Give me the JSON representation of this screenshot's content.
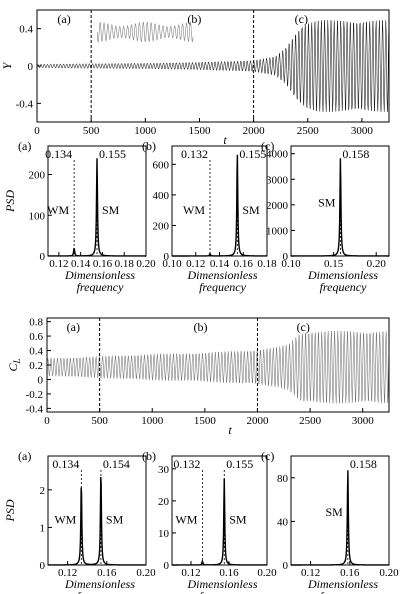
{
  "figure": {
    "top_panel_labels": [
      "(a)",
      "(b)",
      "(c)"
    ],
    "time_xlabel": "t",
    "psd_xlabel_line1": "Dimensionless",
    "psd_xlabel_line2": "frequency",
    "psd_ylabel": "PSD"
  },
  "chart_data": [
    {
      "type": "line",
      "title": "",
      "xlabel": "t",
      "ylabel": "Y",
      "xlim": [
        0,
        3250
      ],
      "ylim": [
        -0.6,
        0.6
      ],
      "xticks": [
        0,
        500,
        1000,
        1500,
        2000,
        2500,
        3000
      ],
      "yticks": [
        -0.4,
        0,
        0.4
      ],
      "ytick_labels": [
        "-0.4",
        "0",
        "0.4"
      ],
      "vlines": [
        500,
        2000
      ],
      "panel_labels": [
        "(a)",
        "(b)",
        "(c)"
      ],
      "envelope": {
        "t": [
          0,
          500,
          1000,
          1500,
          2000,
          2200,
          2300,
          2400,
          2450,
          2500,
          2600,
          3250
        ],
        "amplitude": [
          0.02,
          0.025,
          0.03,
          0.04,
          0.06,
          0.1,
          0.2,
          0.38,
          0.44,
          0.47,
          0.49,
          0.49
        ]
      },
      "inset": "zoomed oscillation segment"
    },
    {
      "type": "line",
      "panel": "(a)",
      "xlabel": "Dimensionless frequency",
      "ylabel": "PSD",
      "xlim": [
        0.11,
        0.2
      ],
      "ylim": [
        0,
        270
      ],
      "xticks": [
        0.12,
        0.14,
        0.16,
        0.18,
        0.2
      ],
      "xtick_labels": [
        "0.12",
        "0.14",
        "0.16",
        "0.18",
        "0.20"
      ],
      "yticks": [
        0,
        100,
        200
      ],
      "peaks": [
        {
          "x": 0.134,
          "y": 20
        },
        {
          "x": 0.155,
          "y": 240
        }
      ],
      "annotations": {
        "peak1": "0.134",
        "peak2": "0.155",
        "wm": "WM",
        "sm": "SM"
      }
    },
    {
      "type": "line",
      "panel": "(b)",
      "xlabel": "Dimensionless frequency",
      "ylabel": "",
      "xlim": [
        0.1,
        0.18
      ],
      "ylim": [
        0,
        720
      ],
      "xticks": [
        0.1,
        0.12,
        0.14,
        0.16,
        0.18
      ],
      "xtick_labels": [
        "0.10",
        "0.12",
        "0.14",
        "0.16",
        "0.18"
      ],
      "yticks": [
        0,
        200,
        400,
        600
      ],
      "peaks": [
        {
          "x": 0.132,
          "y": 15
        },
        {
          "x": 0.155,
          "y": 680
        }
      ],
      "annotations": {
        "peak1": "0.132",
        "peak2": "0.155",
        "wm": "WM",
        "sm": "SM"
      }
    },
    {
      "type": "line",
      "panel": "(c)",
      "xlabel": "Dimensionless frequency",
      "ylabel": "",
      "xlim": [
        0.1,
        0.215
      ],
      "ylim": [
        0,
        4300
      ],
      "xticks": [
        0.1,
        0.15,
        0.2
      ],
      "xtick_labels": [
        "0.10",
        "0.15",
        "0.20"
      ],
      "yticks": [
        0,
        1000,
        2000,
        3000,
        4000
      ],
      "peaks": [
        {
          "x": 0.158,
          "y": 3850
        }
      ],
      "annotations": {
        "peak1": "0.158",
        "sm": "SM"
      }
    },
    {
      "type": "line",
      "title": "",
      "xlabel": "t",
      "ylabel": "C_L",
      "xlim": [
        0,
        3250
      ],
      "ylim": [
        -0.45,
        0.85
      ],
      "xticks": [
        0,
        500,
        1000,
        1500,
        2000,
        2500,
        3000
      ],
      "yticks": [
        -0.4,
        -0.2,
        0,
        0.2,
        0.4,
        0.6,
        0.8
      ],
      "ytick_labels": [
        "-0.4",
        "-0.2",
        "0",
        "0.2",
        "0.4",
        "0.6",
        "0.8"
      ],
      "vlines": [
        500,
        2000
      ],
      "panel_labels": [
        "(a)",
        "(b)",
        "(c)"
      ],
      "mean": 0.17,
      "envelope": {
        "t": [
          0,
          500,
          1000,
          1500,
          2000,
          2200,
          2300,
          2350,
          2400,
          2450,
          2500,
          3250
        ],
        "amplitude": [
          0.12,
          0.15,
          0.18,
          0.2,
          0.24,
          0.28,
          0.32,
          0.4,
          0.47,
          0.5,
          0.5,
          0.5
        ]
      }
    },
    {
      "type": "line",
      "panel": "(a)",
      "xlabel": "Dimensionless frequency",
      "ylabel": "PSD",
      "xlim": [
        0.1,
        0.2
      ],
      "ylim": [
        0,
        2.9
      ],
      "xticks": [
        0.12,
        0.16,
        0.2
      ],
      "xtick_labels": [
        "0.12",
        "0.16",
        "0.20"
      ],
      "yticks": [
        0,
        1,
        2
      ],
      "peaks": [
        {
          "x": 0.134,
          "y": 2.2
        },
        {
          "x": 0.154,
          "y": 2.5
        }
      ],
      "annotations": {
        "peak1": "0.134",
        "peak2": "0.154",
        "wm": "WM",
        "sm": "SM"
      }
    },
    {
      "type": "line",
      "panel": "(b)",
      "xlabel": "Dimensionless frequency",
      "ylabel": "",
      "xlim": [
        0.1,
        0.2
      ],
      "ylim": [
        0,
        34
      ],
      "xticks": [
        0.12,
        0.16,
        0.2
      ],
      "xtick_labels": [
        "0.12",
        "0.16",
        "0.20"
      ],
      "yticks": [
        0,
        10,
        20,
        30
      ],
      "peaks": [
        {
          "x": 0.132,
          "y": 1.2
        },
        {
          "x": 0.155,
          "y": 27
        }
      ],
      "annotations": {
        "peak1": "0.132",
        "peak2": "0.155",
        "wm": "WM",
        "sm": "SM"
      }
    },
    {
      "type": "line",
      "panel": "(c)",
      "xlabel": "Dimensionless frequency",
      "ylabel": "",
      "xlim": [
        0.1,
        0.2
      ],
      "ylim": [
        0,
        100
      ],
      "xticks": [
        0.12,
        0.16,
        0.2
      ],
      "xtick_labels": [
        "0.12",
        "0.16",
        "0.20"
      ],
      "yticks": [
        0,
        40,
        80
      ],
      "peaks": [
        {
          "x": 0.158,
          "y": 88
        }
      ],
      "annotations": {
        "peak1": "0.158",
        "sm": "SM"
      }
    }
  ]
}
